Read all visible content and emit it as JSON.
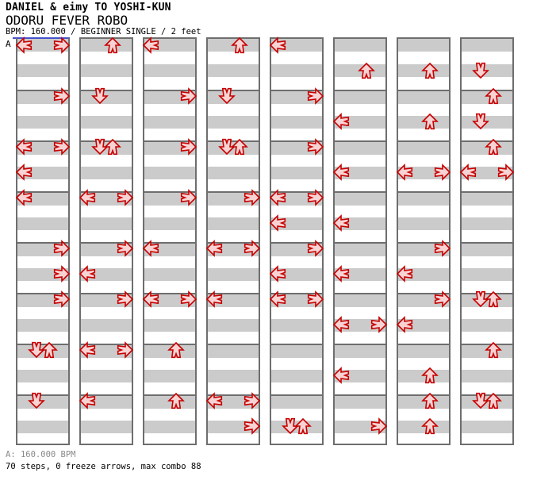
{
  "header": {
    "artist": "DANIEL & eimy TO YOSHI-KUN",
    "song_title": "ODORU FEVER ROBO",
    "chart_info": "BPM: 160.000 / BEGINNER SINGLE / 2 feet"
  },
  "bpm_marker": {
    "label": "A"
  },
  "footer": {
    "bpm_line": "A: 160.000 BPM",
    "stats_line": "70 steps, 0 freeze arrows, max combo 88"
  },
  "colors": {
    "background": "#ffffff",
    "text": "#000000",
    "grid_border": "#6e6e6e",
    "beat_stripe": "#cbcbcb",
    "arrow_fill": "#f8d3d3",
    "arrow_outline": "#c60000",
    "bpm_marker_blue": "#4452cf",
    "footer_muted": "#8a8a8a"
  },
  "chart": {
    "columns": 8,
    "measures_per_column": 8,
    "beats_per_measure": 4,
    "lanes": [
      "left",
      "down",
      "up",
      "right"
    ],
    "notes": [
      {
        "col": 1,
        "measure": 1,
        "beat": 1,
        "arrows": [
          "left",
          "right"
        ]
      },
      {
        "col": 1,
        "measure": 2,
        "beat": 1,
        "arrows": [
          "right"
        ]
      },
      {
        "col": 1,
        "measure": 3,
        "beat": 1,
        "arrows": [
          "left",
          "right"
        ]
      },
      {
        "col": 1,
        "measure": 3,
        "beat": 3,
        "arrows": [
          "left"
        ]
      },
      {
        "col": 1,
        "measure": 4,
        "beat": 1,
        "arrows": [
          "left"
        ]
      },
      {
        "col": 1,
        "measure": 5,
        "beat": 1,
        "arrows": [
          "right"
        ]
      },
      {
        "col": 1,
        "measure": 5,
        "beat": 3,
        "arrows": [
          "right"
        ]
      },
      {
        "col": 1,
        "measure": 6,
        "beat": 1,
        "arrows": [
          "right"
        ]
      },
      {
        "col": 1,
        "measure": 7,
        "beat": 1,
        "arrows": [
          "down",
          "up"
        ]
      },
      {
        "col": 1,
        "measure": 8,
        "beat": 1,
        "arrows": [
          "down"
        ]
      },
      {
        "col": 2,
        "measure": 1,
        "beat": 1,
        "arrows": [
          "up"
        ]
      },
      {
        "col": 2,
        "measure": 2,
        "beat": 1,
        "arrows": [
          "down"
        ]
      },
      {
        "col": 2,
        "measure": 3,
        "beat": 1,
        "arrows": [
          "down",
          "up"
        ]
      },
      {
        "col": 2,
        "measure": 4,
        "beat": 1,
        "arrows": [
          "left",
          "right"
        ]
      },
      {
        "col": 2,
        "measure": 5,
        "beat": 1,
        "arrows": [
          "right"
        ]
      },
      {
        "col": 2,
        "measure": 5,
        "beat": 3,
        "arrows": [
          "left"
        ]
      },
      {
        "col": 2,
        "measure": 6,
        "beat": 1,
        "arrows": [
          "right"
        ]
      },
      {
        "col": 2,
        "measure": 7,
        "beat": 1,
        "arrows": [
          "left",
          "right"
        ]
      },
      {
        "col": 2,
        "measure": 8,
        "beat": 1,
        "arrows": [
          "left"
        ]
      },
      {
        "col": 3,
        "measure": 1,
        "beat": 1,
        "arrows": [
          "left"
        ]
      },
      {
        "col": 3,
        "measure": 2,
        "beat": 1,
        "arrows": [
          "right"
        ]
      },
      {
        "col": 3,
        "measure": 3,
        "beat": 1,
        "arrows": [
          "right"
        ]
      },
      {
        "col": 3,
        "measure": 4,
        "beat": 1,
        "arrows": [
          "right"
        ]
      },
      {
        "col": 3,
        "measure": 5,
        "beat": 1,
        "arrows": [
          "left"
        ]
      },
      {
        "col": 3,
        "measure": 6,
        "beat": 1,
        "arrows": [
          "left",
          "right"
        ]
      },
      {
        "col": 3,
        "measure": 7,
        "beat": 1,
        "arrows": [
          "up"
        ]
      },
      {
        "col": 3,
        "measure": 8,
        "beat": 1,
        "arrows": [
          "up"
        ]
      },
      {
        "col": 4,
        "measure": 1,
        "beat": 1,
        "arrows": [
          "up"
        ]
      },
      {
        "col": 4,
        "measure": 2,
        "beat": 1,
        "arrows": [
          "down"
        ]
      },
      {
        "col": 4,
        "measure": 3,
        "beat": 1,
        "arrows": [
          "down",
          "up"
        ]
      },
      {
        "col": 4,
        "measure": 4,
        "beat": 1,
        "arrows": [
          "right"
        ]
      },
      {
        "col": 4,
        "measure": 5,
        "beat": 1,
        "arrows": [
          "left",
          "right"
        ]
      },
      {
        "col": 4,
        "measure": 6,
        "beat": 1,
        "arrows": [
          "left"
        ]
      },
      {
        "col": 4,
        "measure": 8,
        "beat": 1,
        "arrows": [
          "left",
          "right"
        ]
      },
      {
        "col": 4,
        "measure": 8,
        "beat": 3,
        "arrows": [
          "right"
        ]
      },
      {
        "col": 5,
        "measure": 1,
        "beat": 1,
        "arrows": [
          "left"
        ]
      },
      {
        "col": 5,
        "measure": 2,
        "beat": 1,
        "arrows": [
          "right"
        ]
      },
      {
        "col": 5,
        "measure": 3,
        "beat": 1,
        "arrows": [
          "right"
        ]
      },
      {
        "col": 5,
        "measure": 4,
        "beat": 1,
        "arrows": [
          "left",
          "right"
        ]
      },
      {
        "col": 5,
        "measure": 4,
        "beat": 3,
        "arrows": [
          "left"
        ]
      },
      {
        "col": 5,
        "measure": 5,
        "beat": 1,
        "arrows": [
          "right"
        ]
      },
      {
        "col": 5,
        "measure": 5,
        "beat": 3,
        "arrows": [
          "left"
        ]
      },
      {
        "col": 5,
        "measure": 6,
        "beat": 1,
        "arrows": [
          "left",
          "right"
        ]
      },
      {
        "col": 5,
        "measure": 8,
        "beat": 3,
        "arrows": [
          "down",
          "up"
        ]
      },
      {
        "col": 6,
        "measure": 1,
        "beat": 3,
        "arrows": [
          "up"
        ]
      },
      {
        "col": 6,
        "measure": 2,
        "beat": 3,
        "arrows": [
          "left"
        ]
      },
      {
        "col": 6,
        "measure": 3,
        "beat": 3,
        "arrows": [
          "left"
        ]
      },
      {
        "col": 6,
        "measure": 4,
        "beat": 3,
        "arrows": [
          "left"
        ]
      },
      {
        "col": 6,
        "measure": 5,
        "beat": 3,
        "arrows": [
          "left"
        ]
      },
      {
        "col": 6,
        "measure": 6,
        "beat": 3,
        "arrows": [
          "left",
          "right"
        ]
      },
      {
        "col": 6,
        "measure": 7,
        "beat": 3,
        "arrows": [
          "left"
        ]
      },
      {
        "col": 6,
        "measure": 8,
        "beat": 3,
        "arrows": [
          "right"
        ]
      },
      {
        "col": 7,
        "measure": 1,
        "beat": 3,
        "arrows": [
          "up"
        ]
      },
      {
        "col": 7,
        "measure": 2,
        "beat": 3,
        "arrows": [
          "up"
        ]
      },
      {
        "col": 7,
        "measure": 3,
        "beat": 3,
        "arrows": [
          "left",
          "right"
        ]
      },
      {
        "col": 7,
        "measure": 5,
        "beat": 1,
        "arrows": [
          "right"
        ]
      },
      {
        "col": 7,
        "measure": 5,
        "beat": 3,
        "arrows": [
          "left"
        ]
      },
      {
        "col": 7,
        "measure": 6,
        "beat": 1,
        "arrows": [
          "right"
        ]
      },
      {
        "col": 7,
        "measure": 6,
        "beat": 3,
        "arrows": [
          "left"
        ]
      },
      {
        "col": 7,
        "measure": 7,
        "beat": 3,
        "arrows": [
          "up"
        ]
      },
      {
        "col": 7,
        "measure": 8,
        "beat": 1,
        "arrows": [
          "up"
        ]
      },
      {
        "col": 7,
        "measure": 8,
        "beat": 3,
        "arrows": [
          "up"
        ]
      },
      {
        "col": 8,
        "measure": 1,
        "beat": 3,
        "arrows": [
          "down"
        ]
      },
      {
        "col": 8,
        "measure": 2,
        "beat": 1,
        "arrows": [
          "up"
        ]
      },
      {
        "col": 8,
        "measure": 2,
        "beat": 3,
        "arrows": [
          "down"
        ]
      },
      {
        "col": 8,
        "measure": 3,
        "beat": 1,
        "arrows": [
          "up"
        ]
      },
      {
        "col": 8,
        "measure": 3,
        "beat": 3,
        "arrows": [
          "left",
          "right"
        ]
      },
      {
        "col": 8,
        "measure": 6,
        "beat": 1,
        "arrows": [
          "down",
          "up"
        ]
      },
      {
        "col": 8,
        "measure": 7,
        "beat": 1,
        "arrows": [
          "up"
        ]
      },
      {
        "col": 8,
        "measure": 8,
        "beat": 1,
        "arrows": [
          "down",
          "up"
        ]
      }
    ]
  }
}
